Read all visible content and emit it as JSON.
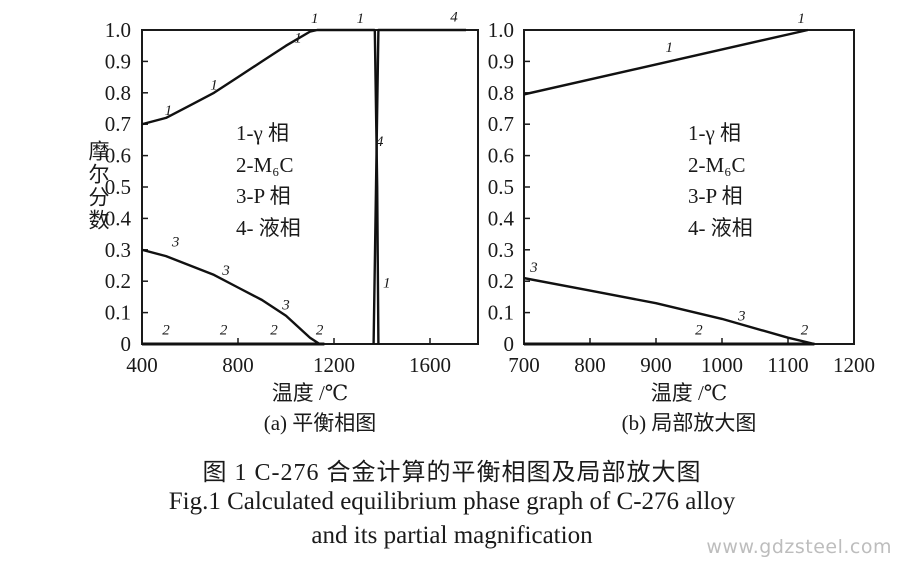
{
  "chart_data": [
    {
      "type": "line",
      "panel_label": "(a) 平衡相图",
      "xlabel": "温度 /℃",
      "ylabel": "摩尔分数",
      "xlim": [
        400,
        1800
      ],
      "ylim": [
        0,
        1.0
      ],
      "x_ticks": [
        "400",
        "800",
        "1200",
        "1600"
      ],
      "y_ticks": [
        "0",
        "0.1",
        "0.2",
        "0.3",
        "0.4",
        "0.5",
        "0.6",
        "0.7",
        "0.8",
        "0.9",
        "1.0"
      ],
      "legend_lines": [
        "1-γ 相",
        "2-M₆C",
        "3-P 相",
        "4- 液相"
      ],
      "series": [
        {
          "label": "1",
          "x": [
            400,
            500,
            600,
            700,
            800,
            900,
            1000,
            1100,
            1130,
            1360,
            1370
          ],
          "y": [
            0.7,
            0.72,
            0.76,
            0.8,
            0.85,
            0.9,
            0.95,
            0.995,
            1.0,
            1.0,
            1.0
          ]
        },
        {
          "label": "1",
          "x": [
            1370,
            1380,
            1385
          ],
          "y": [
            1.0,
            0.5,
            0.0
          ]
        },
        {
          "label": "2",
          "x": [
            400,
            1000,
            1120,
            1160
          ],
          "y": [
            0.0,
            0.0,
            0.0,
            0.0
          ]
        },
        {
          "label": "3",
          "x": [
            400,
            500,
            600,
            700,
            800,
            900,
            1000,
            1100,
            1140
          ],
          "y": [
            0.3,
            0.28,
            0.25,
            0.22,
            0.18,
            0.14,
            0.09,
            0.02,
            0.0
          ]
        },
        {
          "label": "4",
          "x": [
            1365,
            1375,
            1385,
            1450,
            1560,
            1750
          ],
          "y": [
            0.0,
            0.5,
            1.0,
            1.0,
            1.0,
            1.0
          ]
        }
      ],
      "curve_labels": [
        {
          "text": "1",
          "x": 1120,
          "y": 1.035
        },
        {
          "text": "1",
          "x": 1310,
          "y": 1.035
        },
        {
          "text": "4",
          "x": 1700,
          "y": 1.04
        },
        {
          "text": "1",
          "x": 510,
          "y": 0.73
        },
        {
          "text": "1",
          "x": 700,
          "y": 0.81
        },
        {
          "text": "1",
          "x": 1050,
          "y": 0.96
        },
        {
          "text": "4",
          "x": 1390,
          "y": 0.63
        },
        {
          "text": "1",
          "x": 1420,
          "y": 0.18
        },
        {
          "text": "3",
          "x": 540,
          "y": 0.31
        },
        {
          "text": "3",
          "x": 750,
          "y": 0.22
        },
        {
          "text": "3",
          "x": 1000,
          "y": 0.11
        },
        {
          "text": "2",
          "x": 500,
          "y": 0.03
        },
        {
          "text": "2",
          "x": 740,
          "y": 0.03
        },
        {
          "text": "2",
          "x": 950,
          "y": 0.03
        },
        {
          "text": "2",
          "x": 1140,
          "y": 0.03
        }
      ]
    },
    {
      "type": "line",
      "panel_label": "(b) 局部放大图",
      "xlabel": "温度 /℃",
      "ylabel": "",
      "xlim": [
        700,
        1200
      ],
      "ylim": [
        0,
        1.0
      ],
      "x_ticks": [
        "700",
        "800",
        "900",
        "1000",
        "1100",
        "1200"
      ],
      "y_ticks": [
        "0",
        "0.1",
        "0.2",
        "0.3",
        "0.4",
        "0.5",
        "0.6",
        "0.7",
        "0.8",
        "0.9",
        "1.0"
      ],
      "legend_lines": [
        "1-γ 相",
        "2-M₆C",
        "3-P 相",
        "4- 液相"
      ],
      "series": [
        {
          "label": "1",
          "x": [
            700,
            1130
          ],
          "y": [
            0.795,
            1.0
          ]
        },
        {
          "label": "3",
          "x": [
            700,
            800,
            900,
            1000,
            1100,
            1140
          ],
          "y": [
            0.21,
            0.17,
            0.13,
            0.08,
            0.02,
            0.0
          ]
        },
        {
          "label": "2",
          "x": [
            700,
            1140
          ],
          "y": [
            0.0,
            0.0
          ]
        }
      ],
      "curve_labels": [
        {
          "text": "1",
          "x": 1120,
          "y": 1.035
        },
        {
          "text": "1",
          "x": 920,
          "y": 0.93
        },
        {
          "text": "3",
          "x": 715,
          "y": 0.23
        },
        {
          "text": "3",
          "x": 1030,
          "y": 0.075
        },
        {
          "text": "2",
          "x": 965,
          "y": 0.03
        },
        {
          "text": "2",
          "x": 1125,
          "y": 0.03
        }
      ]
    }
  ],
  "caption": {
    "cn": "图 1   C-276 合金计算的平衡相图及局部放大图",
    "en_line1": "Fig.1   Calculated equilibrium phase graph of C-276 alloy",
    "en_line2": "and its partial magnification"
  },
  "watermark": "www.gdzsteel.com"
}
